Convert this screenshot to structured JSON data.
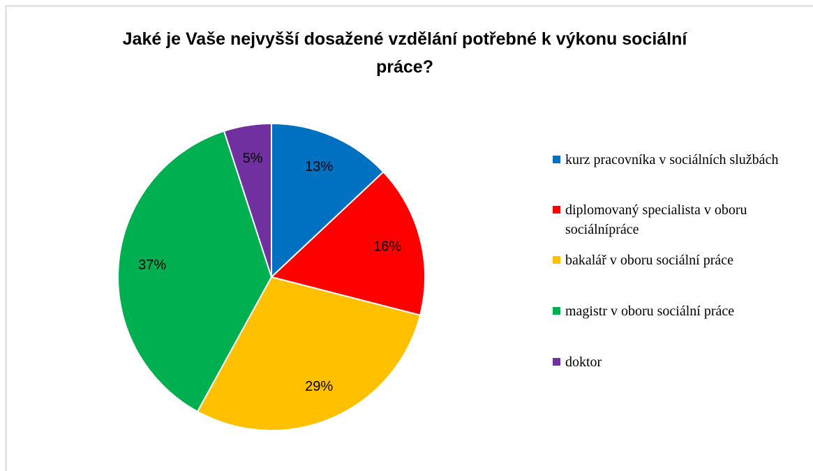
{
  "chart_data": {
    "type": "pie",
    "title": "Jaké je Vaše nejvyšší dosažené vzdělání potřebné k výkonu sociální práce?",
    "categories": [
      "kurz pracovníka v sociálních službách",
      "diplomovaný specialista v oboru sociálnípráce",
      "bakalář v oboru sociální práce",
      "magistr v oboru sociální práce",
      "doktor"
    ],
    "values": [
      13,
      16,
      29,
      37,
      5
    ],
    "value_labels": [
      "13%",
      "16%",
      "29%",
      "37%",
      "5%"
    ],
    "colors": [
      "#0070c0",
      "#ff0000",
      "#ffc000",
      "#00b050",
      "#7030a0"
    ],
    "legend": "right"
  }
}
